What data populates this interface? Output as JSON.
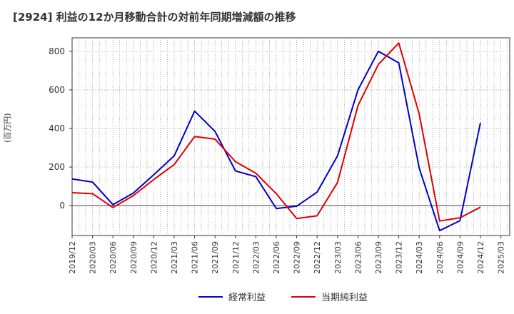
{
  "chart_data": {
    "type": "line",
    "title": "[2924]  利益の12か月移動合計の対前年同期増減額の推移",
    "ylabel": "(百万円)",
    "xlabel": "",
    "ylim": [
      -155,
      870
    ],
    "yticks": [
      0,
      200,
      400,
      600,
      800
    ],
    "grid": true,
    "legend_position": "bottom-center",
    "categories": [
      "2019/12",
      "2020/03",
      "2020/06",
      "2020/09",
      "2020/12",
      "2021/03",
      "2021/06",
      "2021/09",
      "2021/12",
      "2022/03",
      "2022/06",
      "2022/09",
      "2022/12",
      "2023/03",
      "2023/06",
      "2023/09",
      "2023/12",
      "2024/03",
      "2024/06",
      "2024/09",
      "2024/12",
      "2025/03"
    ],
    "series": [
      {
        "name": "経常利益",
        "color": "#0000cc",
        "values": [
          138,
          122,
          5,
          65,
          160,
          258,
          490,
          385,
          180,
          150,
          -15,
          -3,
          70,
          258,
          600,
          800,
          740,
          195,
          -130,
          -78,
          430,
          null
        ]
      },
      {
        "name": "当期純利益",
        "color": "#dd0000",
        "values": [
          67,
          62,
          -10,
          52,
          135,
          213,
          358,
          345,
          228,
          168,
          62,
          -67,
          -53,
          120,
          518,
          732,
          843,
          475,
          -80,
          -63,
          -8,
          null
        ]
      }
    ]
  }
}
